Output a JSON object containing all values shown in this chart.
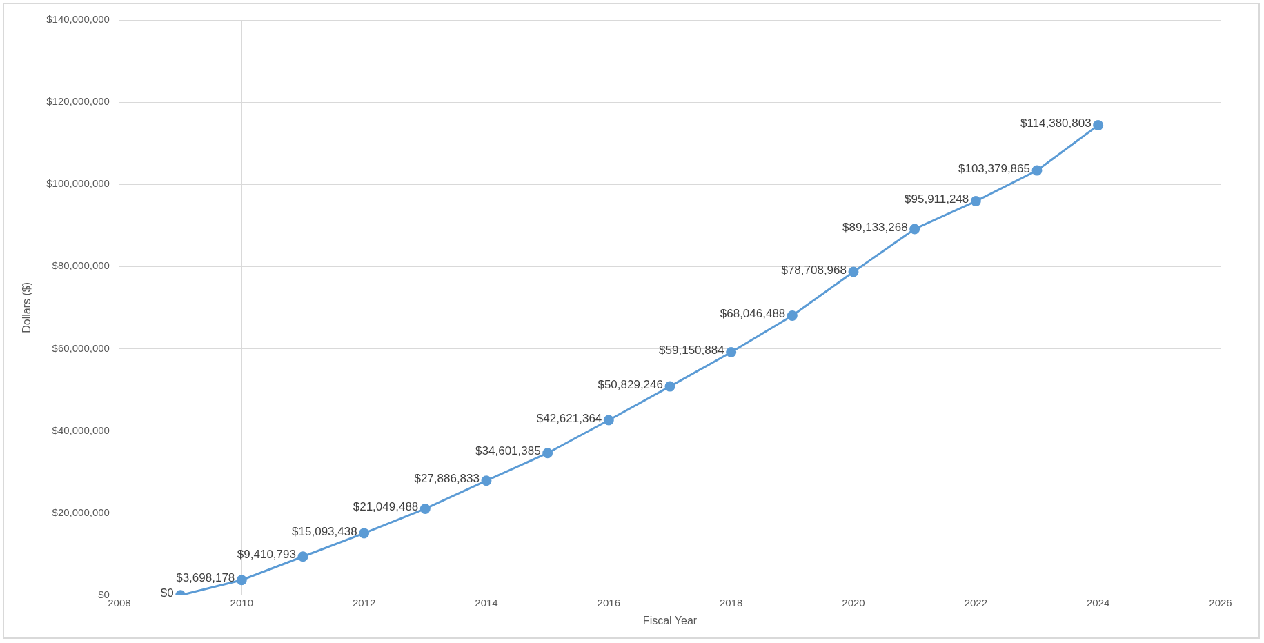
{
  "chart_data": {
    "type": "line",
    "xlabel": "Fiscal Year",
    "ylabel": "Dollars ($)",
    "x": [
      2009,
      2010,
      2011,
      2012,
      2013,
      2014,
      2015,
      2016,
      2017,
      2018,
      2019,
      2020,
      2021,
      2022,
      2023,
      2024
    ],
    "series": [
      {
        "color": "#5b9bd5",
        "values": [
          0,
          3698178,
          9410793,
          15093438,
          21049488,
          27886833,
          34601385,
          42621364,
          50829246,
          59150884,
          68046488,
          78708968,
          89133268,
          95911248,
          103379865,
          114380803
        ],
        "value_labels": [
          "$0",
          "$3,698,178",
          "$9,410,793",
          "$15,093,438",
          "$21,049,488",
          "$27,886,833",
          "$34,601,385",
          "$42,621,364",
          "$50,829,246",
          "$59,150,884",
          "$68,046,488",
          "$78,708,968",
          "$89,133,268",
          "$95,911,248",
          "$103,379,865",
          "$114,380,803"
        ]
      }
    ],
    "xlim": [
      2008,
      2026
    ],
    "xticks": [
      2008,
      2010,
      2012,
      2014,
      2016,
      2018,
      2020,
      2022,
      2024,
      2026
    ],
    "ylim": [
      0,
      140000000
    ],
    "yticks": [
      {
        "value": 0,
        "label": "$0"
      },
      {
        "value": 20000000,
        "label": "$20,000,000"
      },
      {
        "value": 40000000,
        "label": "$40,000,000"
      },
      {
        "value": 60000000,
        "label": "$60,000,000"
      },
      {
        "value": 80000000,
        "label": "$80,000,000"
      },
      {
        "value": 100000000,
        "label": "$100,000,000"
      },
      {
        "value": 120000000,
        "label": "$120,000,000"
      },
      {
        "value": 140000000,
        "label": "$140,000,000"
      }
    ],
    "grid": true,
    "marker": "circle",
    "line_style": "solid",
    "legend": false
  }
}
